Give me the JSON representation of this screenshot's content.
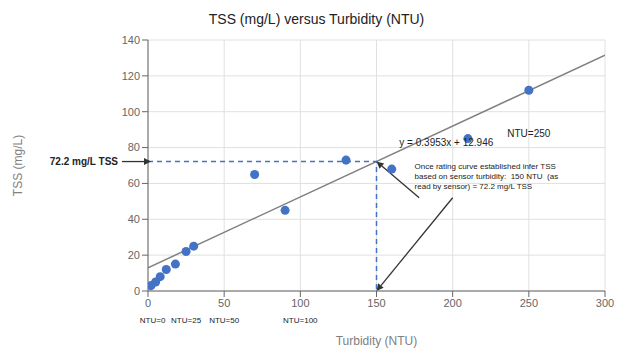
{
  "chart_data": {
    "type": "scatter",
    "title": "TSS (mg/L) versus Turbidity (NTU)",
    "x_label": "Turbidity (NTU)",
    "y_label": "TSS (mg/L)",
    "series": [
      {
        "type": "scatter",
        "color": "#4472C4",
        "x": [
          2,
          5,
          8,
          12,
          18,
          25,
          30,
          70,
          90,
          130,
          160,
          210,
          250
        ],
        "values": [
          3,
          5,
          8,
          12,
          15,
          22,
          25,
          65,
          45,
          73,
          68,
          85,
          112
        ]
      },
      {
        "type": "line",
        "color": "#808080",
        "x": [
          0,
          300
        ],
        "values": [
          12.946,
          131.536
        ]
      },
      {
        "type": "line",
        "line_style": "dashed",
        "color": "#4472C4",
        "x": [
          0,
          150,
          150
        ],
        "values": [
          72.2,
          72.2,
          0
        ]
      }
    ],
    "annotations": [
      "y = 0.3953x + 12.946",
      "72.2 mg/L TSS",
      "Once rating curve established infer TSS\nbased on sensor turbidity:  150 NTU  (as\nread by sensor) = 72.2 mg/L TSS",
      "NTU=0",
      "NTU=25",
      "NTU=50",
      "NTU=100",
      "NTU=250"
    ],
    "xlim": [
      0,
      300
    ],
    "ylim": [
      0,
      140
    ],
    "xticks": [
      0,
      50,
      100,
      150,
      200,
      250,
      300
    ],
    "yticks": [
      0,
      20,
      40,
      60,
      80,
      100,
      120,
      140
    ],
    "grid": true
  }
}
